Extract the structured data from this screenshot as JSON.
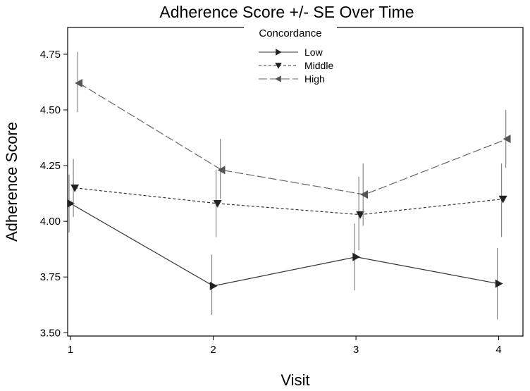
{
  "chart_data": {
    "type": "line",
    "title": "Adherence Score +/- SE Over Time",
    "xlabel": "Visit",
    "ylabel": "Adherence Score",
    "x": [
      1,
      2,
      3,
      4
    ],
    "x_tick_labels": [
      "1",
      "2",
      "3",
      "4"
    ],
    "y_ticks": [
      3.5,
      3.75,
      4.0,
      4.25,
      4.5,
      4.75
    ],
    "y_tick_labels": [
      "3.50",
      "3.75",
      "4.00",
      "4.25",
      "4.50",
      "4.75"
    ],
    "xlim": [
      0.98,
      4.17
    ],
    "ylim": [
      3.485,
      4.87
    ],
    "legend": {
      "title": "Concordance",
      "placement": "top-center"
    },
    "series": [
      {
        "name": "Low",
        "style": "solid",
        "marker": "triangle-right",
        "color": "#333333",
        "values": [
          4.08,
          3.71,
          3.84,
          3.72
        ],
        "se_lower": [
          3.95,
          3.58,
          3.69,
          3.56
        ],
        "se_upper": [
          4.21,
          3.85,
          3.99,
          3.88
        ]
      },
      {
        "name": "Middle",
        "style": "dashed",
        "marker": "triangle-down",
        "color": "#333333",
        "values": [
          4.15,
          4.08,
          4.03,
          4.1
        ],
        "se_lower": [
          4.02,
          3.93,
          3.87,
          3.93
        ],
        "se_upper": [
          4.28,
          4.23,
          4.2,
          4.26
        ]
      },
      {
        "name": "High",
        "style": "long-dash",
        "marker": "triangle-left",
        "color": "#666666",
        "values": [
          4.62,
          4.23,
          4.12,
          4.37
        ],
        "se_lower": [
          4.49,
          4.1,
          3.98,
          4.24
        ],
        "se_upper": [
          4.76,
          4.37,
          4.26,
          4.5
        ]
      }
    ]
  }
}
